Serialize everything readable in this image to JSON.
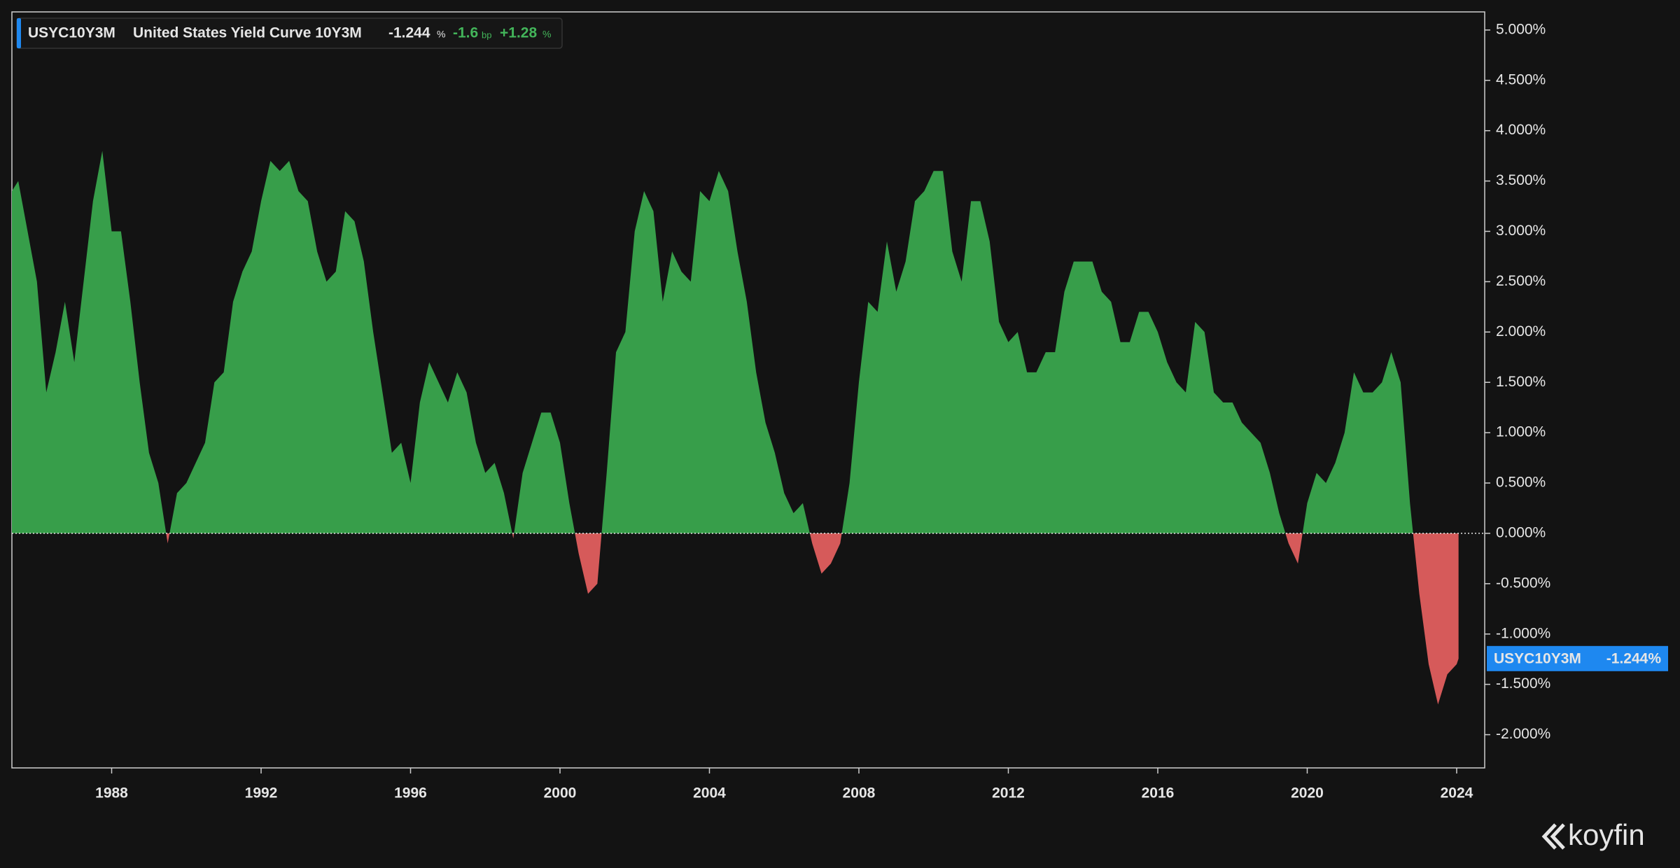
{
  "chart_data": {
    "type": "area",
    "title": "United States Yield Curve 10Y3M",
    "header": {
      "last": "-1.244",
      "last_unit": "%",
      "change": "-1.6",
      "change_unit": "bp",
      "change_pct": "+1.28",
      "change_pct_unit": "%"
    },
    "watermark": "koyfin",
    "x": [
      1985.33,
      1985.5,
      1985.75,
      1986,
      1986.25,
      1986.5,
      1986.75,
      1987,
      1987.25,
      1987.5,
      1987.75,
      1988,
      1988.25,
      1988.5,
      1988.75,
      1989,
      1989.25,
      1989.5,
      1989.75,
      1990,
      1990.25,
      1990.5,
      1990.75,
      1991,
      1991.25,
      1991.5,
      1991.75,
      1992,
      1992.25,
      1992.5,
      1992.75,
      1993,
      1993.25,
      1993.5,
      1993.75,
      1994,
      1994.25,
      1994.5,
      1994.75,
      1995,
      1995.25,
      1995.5,
      1995.75,
      1996,
      1996.25,
      1996.5,
      1996.75,
      1997,
      1997.25,
      1997.5,
      1997.75,
      1998,
      1998.25,
      1998.5,
      1998.75,
      1999,
      1999.25,
      1999.5,
      1999.75,
      2000,
      2000.25,
      2000.5,
      2000.75,
      2001,
      2001.25,
      2001.5,
      2001.75,
      2002,
      2002.25,
      2002.5,
      2002.75,
      2003,
      2003.25,
      2003.5,
      2003.75,
      2004,
      2004.25,
      2004.5,
      2004.75,
      2005,
      2005.25,
      2005.5,
      2005.75,
      2006,
      2006.25,
      2006.5,
      2006.75,
      2007,
      2007.25,
      2007.5,
      2007.75,
      2008,
      2008.25,
      2008.5,
      2008.75,
      2009,
      2009.25,
      2009.5,
      2009.75,
      2010,
      2010.25,
      2010.5,
      2010.75,
      2011,
      2011.25,
      2011.5,
      2011.75,
      2012,
      2012.25,
      2012.5,
      2012.75,
      2013,
      2013.25,
      2013.5,
      2013.75,
      2014,
      2014.25,
      2014.5,
      2014.75,
      2015,
      2015.25,
      2015.5,
      2015.75,
      2016,
      2016.25,
      2016.5,
      2016.75,
      2017,
      2017.25,
      2017.5,
      2017.75,
      2018,
      2018.25,
      2018.5,
      2018.75,
      2019,
      2019.25,
      2019.5,
      2019.75,
      2020,
      2020.25,
      2020.5,
      2020.75,
      2021,
      2021.25,
      2021.5,
      2021.75,
      2022,
      2022.25,
      2022.5,
      2022.75,
      2023,
      2023.25,
      2023.5,
      2023.75,
      2024,
      2024.05
    ],
    "series": [
      {
        "name": "USYC10Y3M",
        "color": "#379e4a",
        "negative_color": "#d65a5a",
        "label_color": "#1e88f0",
        "last_label": "-1.244%",
        "values": [
          3.4,
          3.5,
          3.0,
          2.5,
          1.4,
          1.8,
          2.3,
          1.7,
          2.5,
          3.3,
          3.8,
          3.0,
          3.0,
          2.3,
          1.5,
          0.8,
          0.5,
          -0.1,
          0.4,
          0.5,
          0.7,
          0.9,
          1.5,
          1.6,
          2.3,
          2.6,
          2.8,
          3.3,
          3.7,
          3.6,
          3.7,
          3.4,
          3.3,
          2.8,
          2.5,
          2.6,
          3.2,
          3.1,
          2.7,
          2.0,
          1.4,
          0.8,
          0.9,
          0.5,
          1.3,
          1.7,
          1.5,
          1.3,
          1.6,
          1.4,
          0.9,
          0.6,
          0.7,
          0.4,
          -0.05,
          0.6,
          0.9,
          1.2,
          1.2,
          0.9,
          0.3,
          -0.2,
          -0.6,
          -0.5,
          0.6,
          1.8,
          2.0,
          3.0,
          3.4,
          3.2,
          2.3,
          2.8,
          2.6,
          2.5,
          3.4,
          3.3,
          3.6,
          3.4,
          2.8,
          2.3,
          1.6,
          1.1,
          0.8,
          0.4,
          0.2,
          0.3,
          -0.1,
          -0.4,
          -0.3,
          -0.1,
          0.5,
          1.5,
          2.3,
          2.2,
          2.9,
          2.4,
          2.7,
          3.3,
          3.4,
          3.6,
          3.6,
          2.8,
          2.5,
          3.3,
          3.3,
          2.9,
          2.1,
          1.9,
          2.0,
          1.6,
          1.6,
          1.8,
          1.8,
          2.4,
          2.7,
          2.7,
          2.7,
          2.4,
          2.3,
          1.9,
          1.9,
          2.2,
          2.2,
          2.0,
          1.7,
          1.5,
          1.4,
          2.1,
          2.0,
          1.4,
          1.3,
          1.3,
          1.1,
          1.0,
          0.9,
          0.6,
          0.2,
          -0.1,
          -0.3,
          0.3,
          0.6,
          0.5,
          0.7,
          1.0,
          1.6,
          1.4,
          1.4,
          1.5,
          1.8,
          1.5,
          0.3,
          -0.6,
          -1.3,
          -1.7,
          -1.4,
          -1.3,
          -1.244
        ]
      }
    ],
    "xlim": [
      1985.33,
      2024.75
    ],
    "xticks": [
      1988,
      1992,
      1996,
      2000,
      2004,
      2008,
      2012,
      2016,
      2020,
      2024
    ],
    "ylim": [
      -2.33,
      5.18
    ],
    "yticks": [
      {
        "value": 5,
        "label": "5.000%"
      },
      {
        "value": 4.5,
        "label": "4.500%"
      },
      {
        "value": 4,
        "label": "4.000%"
      },
      {
        "value": 3.5,
        "label": "3.500%"
      },
      {
        "value": 3,
        "label": "3.000%"
      },
      {
        "value": 2.5,
        "label": "2.500%"
      },
      {
        "value": 2,
        "label": "2.000%"
      },
      {
        "value": 1.5,
        "label": "1.500%"
      },
      {
        "value": 1,
        "label": "1.000%"
      },
      {
        "value": 0.5,
        "label": "0.500%"
      },
      {
        "value": 0,
        "label": "0.000%"
      },
      {
        "value": -0.5,
        "label": "-0.500%"
      },
      {
        "value": -1,
        "label": "-1.000%"
      },
      {
        "value": -1.5,
        "label": "-1.500%"
      },
      {
        "value": -2,
        "label": "-2.000%"
      }
    ]
  }
}
